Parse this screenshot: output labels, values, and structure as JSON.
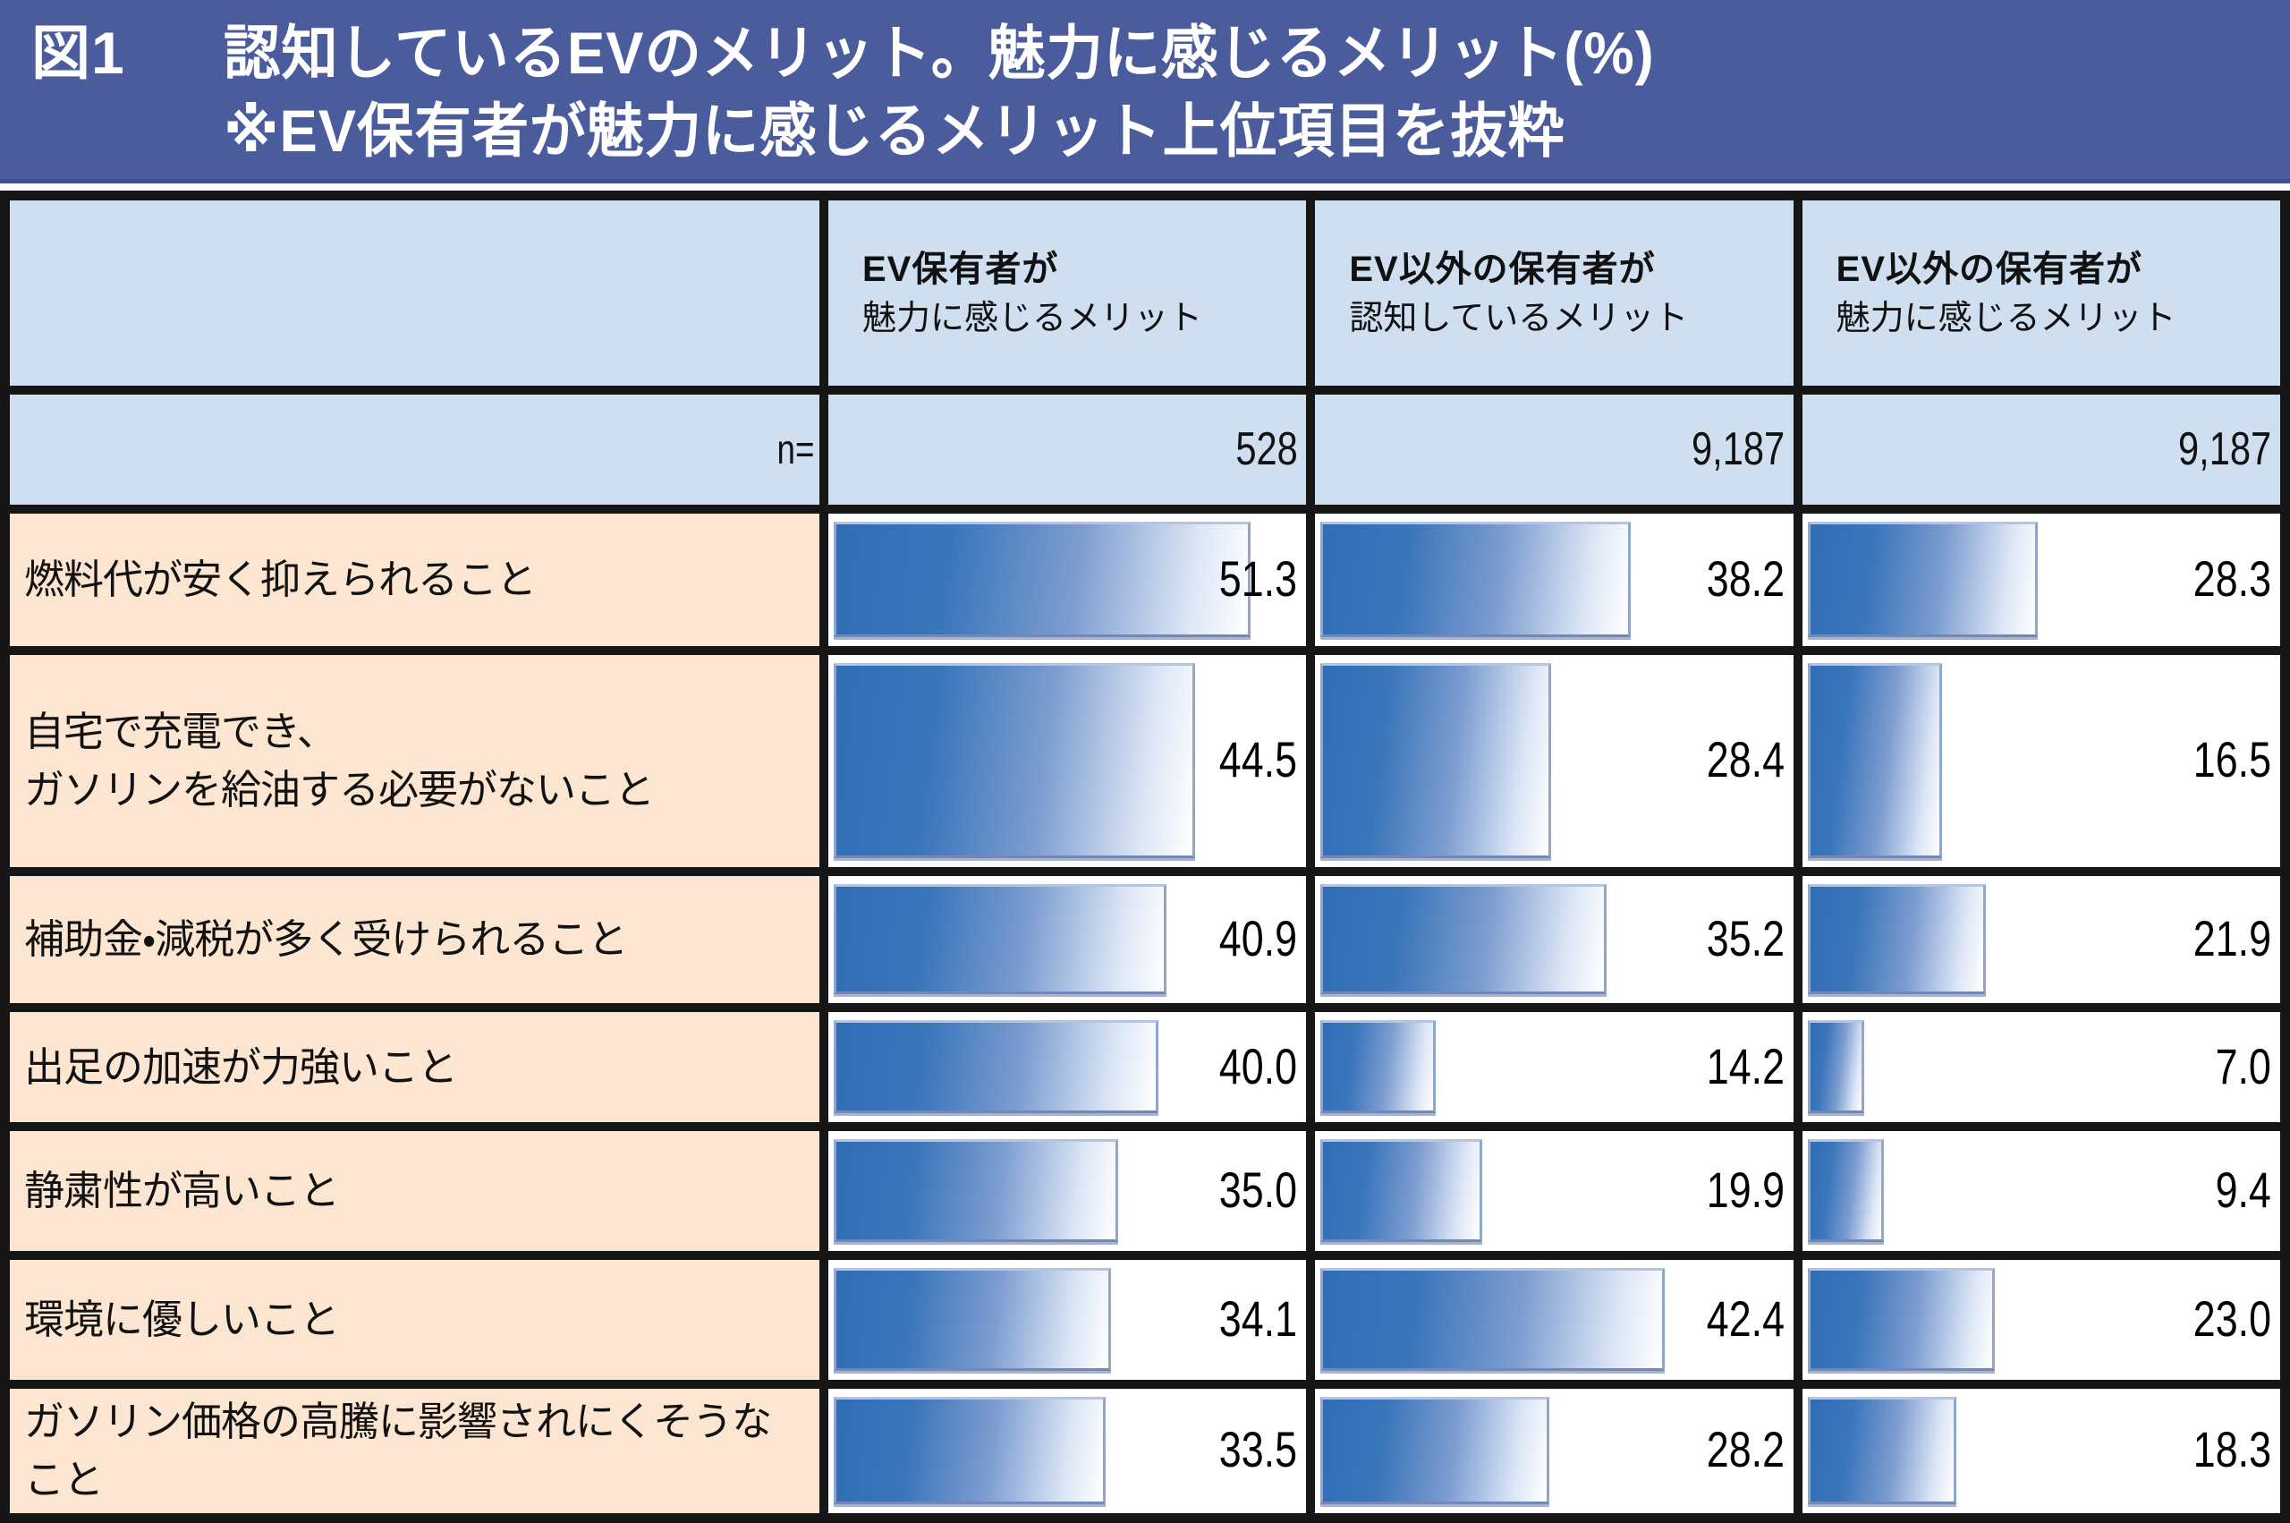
{
  "title": {
    "fig": "図1",
    "line1": "認知しているEVのメリット。魅力に感じるメリット(%)",
    "line2": "※EV保有者が魅力に感じるメリット上位項目を抜粋"
  },
  "colors": {
    "banner_bg": "#4a5c9c",
    "header_bg": "#cfdff0",
    "row_label_bg": "#fce6d1",
    "bar_blue": "#2f6db5",
    "bar_fade_end": "#ffffff",
    "grid_border": "#161616"
  },
  "table": {
    "n_label": "n=",
    "columns": [
      {
        "header_line1": "EV保有者が",
        "header_line2": "魅力に感じるメリット",
        "n": "528"
      },
      {
        "header_line1": "EV以外の保有者が",
        "header_line2": "認知しているメリット",
        "n": "9,187"
      },
      {
        "header_line1": "EV以外の保有者が",
        "header_line2": "魅力に感じるメリット",
        "n": "9,187"
      }
    ]
  },
  "chart_data": {
    "type": "bar",
    "orientation": "horizontal",
    "title": "図1 認知しているEVのメリット。魅力に感じるメリット(%) ※EV保有者が魅力に感じるメリット上位項目を抜粋",
    "unit": "%",
    "xlim": [
      0,
      57.5
    ],
    "grid": false,
    "value_labels": true,
    "categories": [
      "燃料代が安く抑えられること",
      "自宅で充電でき、\nガソリンを給油する必要がないこと",
      "補助金・減税が多く受けられること",
      "出足の加速が力強いこと",
      "静粛性が高いこと",
      "環境に優しいこと",
      "ガソリン価格の高騰に影響されにくそうなこと"
    ],
    "series": [
      {
        "name": "EV保有者が魅力に感じるメリット",
        "n": 528,
        "values": [
          51.3,
          44.5,
          40.9,
          40.0,
          35.0,
          34.1,
          33.5
        ]
      },
      {
        "name": "EV以外の保有者が認知しているメリット",
        "n": 9187,
        "values": [
          38.2,
          28.4,
          35.2,
          14.2,
          19.9,
          42.4,
          28.2
        ]
      },
      {
        "name": "EV以外の保有者が魅力に感じるメリット",
        "n": 9187,
        "values": [
          28.3,
          16.5,
          21.9,
          7.0,
          9.4,
          23.0,
          18.3
        ]
      }
    ]
  }
}
